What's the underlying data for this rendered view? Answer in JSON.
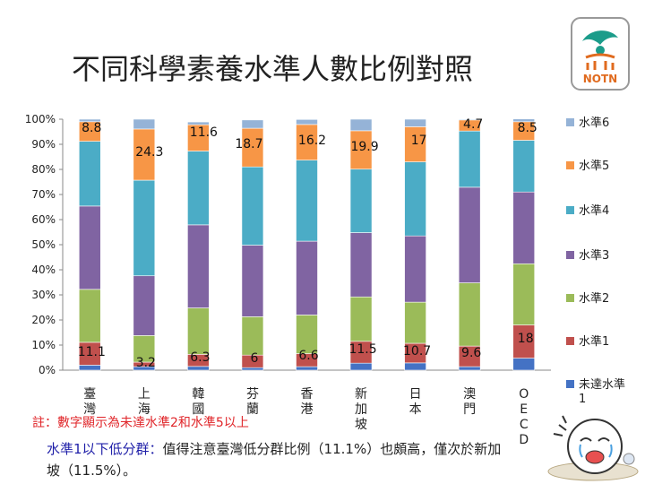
{
  "title": "不同科學素養水準人數比例對照",
  "logo_text": "NOTN",
  "chart_data": {
    "type": "stacked-bar-100",
    "categories": [
      "臺灣",
      "上海",
      "韓國",
      "芬蘭",
      "香港",
      "新加坡",
      "日本",
      "澳門",
      "OECD"
    ],
    "series": [
      {
        "name": "未達水準1",
        "color": "#4472c4",
        "values": [
          2.0,
          1.4,
          1.5,
          1.0,
          1.4,
          2.8,
          2.9,
          1.4,
          4.8
        ]
      },
      {
        "name": "水準1",
        "color": "#c0504d",
        "values": [
          9.1,
          1.8,
          4.8,
          5.0,
          5.2,
          8.7,
          7.8,
          8.2,
          13.2
        ]
      },
      {
        "name": "水準2",
        "color": "#9bbb59",
        "values": [
          21.1,
          10.6,
          18.5,
          15.3,
          15.4,
          17.7,
          16.4,
          25.2,
          24.4
        ]
      },
      {
        "name": "水準3",
        "color": "#8064a2",
        "values": [
          33.2,
          23.8,
          33.1,
          28.5,
          29.4,
          25.6,
          26.4,
          38.1,
          28.6
        ]
      },
      {
        "name": "水準4",
        "color": "#4bacc6",
        "values": [
          25.8,
          38.1,
          29.4,
          31.2,
          32.3,
          25.3,
          29.5,
          22.4,
          20.6
        ]
      },
      {
        "name": "水準5",
        "color": "#f79646",
        "values": [
          7.8,
          20.4,
          10.5,
          15.4,
          14.2,
          15.3,
          14.0,
          4.4,
          7.4
        ]
      },
      {
        "name": "水準6",
        "color": "#95b3d7",
        "values": [
          1.0,
          3.9,
          1.1,
          3.3,
          2.0,
          4.6,
          3.0,
          0.3,
          1.1
        ]
      }
    ],
    "top_labels": [
      "8.8",
      "24.3",
      "11.6",
      "18.7",
      "16.2",
      "19.9",
      "17",
      "4.7",
      "8.5"
    ],
    "bottom_labels": [
      "11.1",
      "3.2",
      "6.3",
      "6",
      "6.6",
      "11.5",
      "10.7",
      "9.6",
      "18"
    ],
    "y_ticks": [
      "0%",
      "10%",
      "20%",
      "30%",
      "40%",
      "50%",
      "60%",
      "70%",
      "80%",
      "90%",
      "100%"
    ],
    "ylim": [
      0,
      100
    ],
    "legend_position": "right"
  },
  "note": "註：數字顯示為未達水準2和水準5以上",
  "summary_highlight": "水準1以下低分群：",
  "summary_rest": "值得注意臺灣低分群比例（11.1%）也頗高，僅次於新加坡（11.5%）。"
}
